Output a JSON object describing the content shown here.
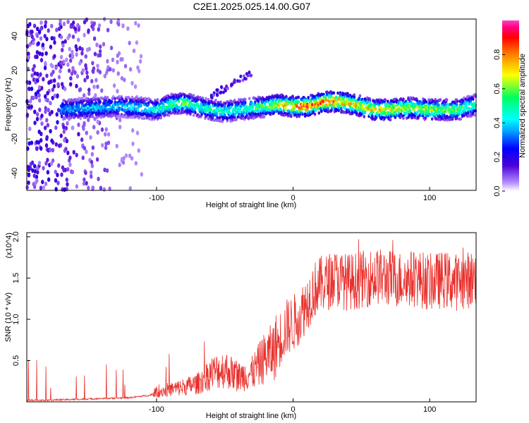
{
  "figure": {
    "title": "C2E1.2025.025.14.00.G07"
  },
  "chart_data": [
    {
      "type": "heatmap",
      "xlabel": "Height of straight line (km)",
      "ylabel": "Frequency (Hz)",
      "xlim": [
        -195,
        134
      ],
      "ylim": [
        -50,
        50
      ],
      "xticks": [
        -100,
        0,
        100
      ],
      "yticks": [
        -40,
        -20,
        0,
        20,
        40
      ],
      "colorbar": {
        "label": "Normalized spectral amplitude",
        "range": [
          0,
          1
        ],
        "ticks": [
          0.0,
          0.2,
          0.4,
          0.6,
          0.8
        ],
        "colors": [
          "#ffffff",
          "#b58cff",
          "#4b00d8",
          "#0000ff",
          "#00a0ff",
          "#00ffff",
          "#00ff60",
          "#ffff00",
          "#ff8000",
          "#ff0000",
          "#ff0080",
          "#ff40c0"
        ]
      },
      "ridge": {
        "x": [
          -170,
          -150,
          -130,
          -110,
          -100,
          -90,
          -80,
          -70,
          -60,
          -50,
          -40,
          -30,
          -20,
          -10,
          0,
          10,
          20,
          30,
          40,
          50,
          60,
          70,
          80,
          90,
          100,
          110,
          120,
          134
        ],
        "freq_hz": [
          -3,
          -2,
          -1,
          -2,
          -3,
          0,
          1,
          -1,
          -3,
          -4,
          -3,
          -2,
          -1,
          0,
          -1,
          -1,
          1,
          2,
          1,
          -1,
          -3,
          -3,
          -2,
          -2,
          -3,
          -3,
          -3,
          0
        ],
        "peak_amp": [
          0.4,
          0.45,
          0.45,
          0.5,
          0.55,
          0.6,
          0.65,
          0.55,
          0.55,
          0.55,
          0.55,
          0.6,
          0.65,
          0.8,
          0.9,
          0.95,
          0.95,
          0.95,
          0.85,
          0.8,
          0.85,
          0.85,
          0.75,
          0.7,
          0.75,
          0.7,
          0.65,
          0.55
        ]
      },
      "low_altitude_scatter_region_x": [
        -195,
        -110
      ]
    },
    {
      "type": "line",
      "xlabel": "Height of straight line (km)",
      "ylabel": "SNR (10 * v/v)",
      "y_multiplier": "(x10^4)",
      "xlim": [
        -195,
        134
      ],
      "ylim": [
        0,
        2.05
      ],
      "xticks": [
        -100,
        0,
        100
      ],
      "yticks": [
        0.5,
        1.0,
        1.5,
        2.0
      ],
      "ytick_labels": [
        "0.5",
        "1.0",
        "1.5",
        "2.0"
      ],
      "line_color": "#e8302c",
      "series": [
        {
          "x": [
            -195,
            -180,
            -160,
            -140,
            -120,
            -105,
            -100,
            -90,
            -80,
            -70,
            -60,
            -50,
            -40,
            -30,
            -20,
            -15,
            -10,
            -5,
            0,
            5,
            10,
            15,
            20,
            25,
            30,
            40,
            50,
            60,
            70,
            80,
            90,
            100,
            110,
            120,
            134
          ],
          "y": [
            0.02,
            0.02,
            0.03,
            0.04,
            0.05,
            0.08,
            0.12,
            0.15,
            0.18,
            0.22,
            0.35,
            0.4,
            0.3,
            0.35,
            0.55,
            0.6,
            0.75,
            0.9,
            0.95,
            1.05,
            1.2,
            1.35,
            1.42,
            1.45,
            1.5,
            1.45,
            1.48,
            1.52,
            1.5,
            1.48,
            1.5,
            1.45,
            1.48,
            1.45,
            1.5
          ]
        }
      ]
    }
  ]
}
